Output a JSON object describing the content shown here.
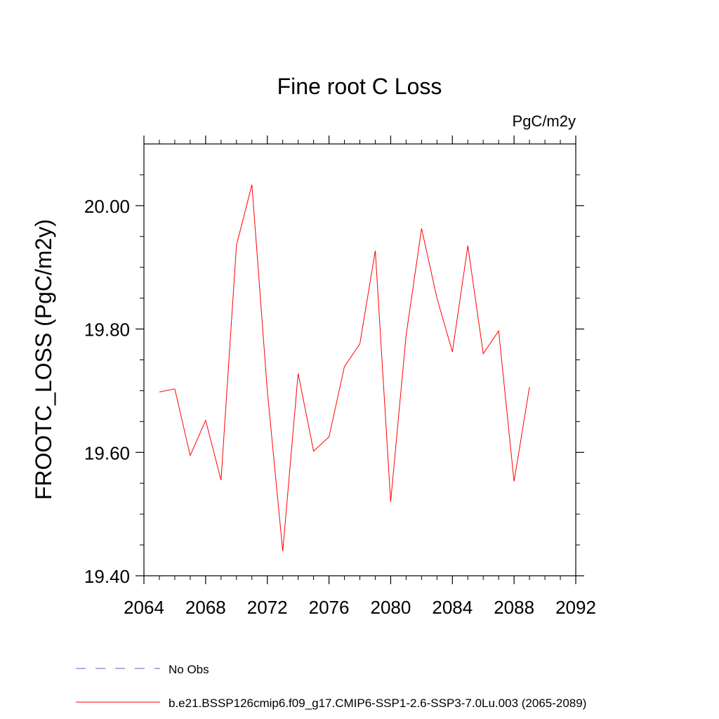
{
  "chart_data": {
    "type": "line",
    "title": "Fine root C Loss",
    "units": "PgC/m2y",
    "ylabel": "FROOTC_LOSS  (PgC/m2y)",
    "xlabel": "",
    "xlim": [
      2064,
      2092
    ],
    "ylim": [
      19.4,
      20.1
    ],
    "xticks": [
      2064,
      2068,
      2072,
      2076,
      2080,
      2084,
      2088,
      2092
    ],
    "xtick_labels": [
      "2064",
      "2068",
      "2072",
      "2076",
      "2080",
      "2084",
      "2088",
      "2092"
    ],
    "yticks": [
      19.4,
      19.6,
      19.8,
      20.0
    ],
    "ytick_labels": [
      "19.40",
      "19.60",
      "19.80",
      "20.00"
    ],
    "grid": false,
    "legend_position": "bottom",
    "legend": [
      {
        "label": "No Obs",
        "style": "dashed",
        "color": "#6a5acd"
      },
      {
        "label": "b.e21.BSSP126cmip6.f09_g17.CMIP6-SSP1-2.6-SSP3-7.0Lu.003 (2065-2089)",
        "style": "solid",
        "color": "#ff0000"
      }
    ],
    "series": [
      {
        "name": "b.e21.BSSP126cmip6.f09_g17.CMIP6-SSP1-2.6-SSP3-7.0Lu.003 (2065-2089)",
        "color": "#ff0000",
        "x": [
          2065,
          2066,
          2067,
          2068,
          2069,
          2070,
          2071,
          2072,
          2073,
          2074,
          2075,
          2076,
          2077,
          2078,
          2079,
          2080,
          2081,
          2082,
          2083,
          2084,
          2085,
          2086,
          2087,
          2088,
          2089
        ],
        "y": [
          19.698,
          19.703,
          19.595,
          19.652,
          19.555,
          19.936,
          20.034,
          19.7,
          19.44,
          19.728,
          19.602,
          19.625,
          19.739,
          19.776,
          19.927,
          19.52,
          19.79,
          19.963,
          19.85,
          19.763,
          19.935,
          19.76,
          19.797,
          19.553,
          19.706
        ]
      }
    ]
  }
}
